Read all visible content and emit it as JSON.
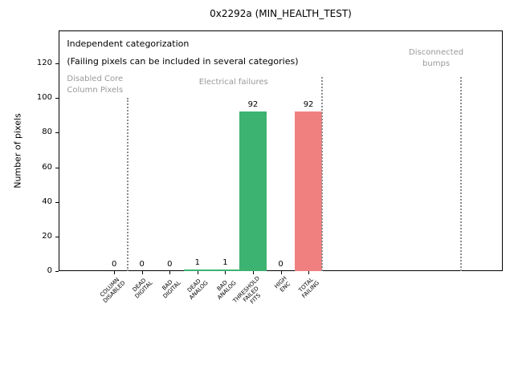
{
  "title": "0x2292a (MIN_HEALTH_TEST)",
  "chart_data": {
    "type": "bar",
    "title": "0x2292a (MIN_HEALTH_TEST)",
    "xlabel": "",
    "ylabel": "Number of pixels",
    "categories": [
      "COLUMN\nDISABLED",
      "DEAD\nDIGITAL",
      "BAD\nDIGITAL",
      "DEAD\nANALOG",
      "BAD\nANALOG",
      "THRESHOLD\nFAILED\nFITS",
      "HIGH\nENC",
      "TOTAL\nFAILING"
    ],
    "values": [
      0,
      0,
      0,
      1,
      1,
      92,
      0,
      92
    ],
    "value_labels": [
      "0",
      "0",
      "0",
      "1",
      "1",
      "92",
      "0",
      "92"
    ],
    "bar_colors": [
      "#3cb371",
      "#3cb371",
      "#3cb371",
      "#3cb371",
      "#3cb371",
      "#3cb371",
      "#3cb371",
      "#f08080"
    ],
    "yticks": [
      0,
      20,
      40,
      60,
      80,
      100,
      120
    ],
    "ylim": [
      0,
      139
    ],
    "xlim": [
      -2,
      14
    ],
    "grid": false,
    "legend": null,
    "separator_color": "#8c8c8c",
    "separators": [
      {
        "x": 0.5,
        "ymax": 100
      },
      {
        "x": 7.5,
        "ymax": 112
      },
      {
        "x": 12.5,
        "ymax": 112
      }
    ],
    "annotations": [
      {
        "text": "Independent categorization",
        "x": -1.7,
        "y": 134.5,
        "ha": "left",
        "color": "#000000",
        "size": 11
      },
      {
        "text": "(Failing pixels can be included in several categories)",
        "x": -1.7,
        "y": 124,
        "ha": "left",
        "color": "#000000",
        "size": 11
      },
      {
        "text": "Disabled Core\nColumn Pixels",
        "x": -1.7,
        "y": 114,
        "ha": "left",
        "color": "#999999",
        "size": 10
      },
      {
        "text": "Electrical failures",
        "x": 4.3,
        "y": 112,
        "ha": "center",
        "color": "#999999",
        "size": 10
      },
      {
        "text": "Disconnected\nbumps",
        "x": 11.6,
        "y": 129.5,
        "ha": "center",
        "color": "#999999",
        "size": 10
      }
    ]
  }
}
